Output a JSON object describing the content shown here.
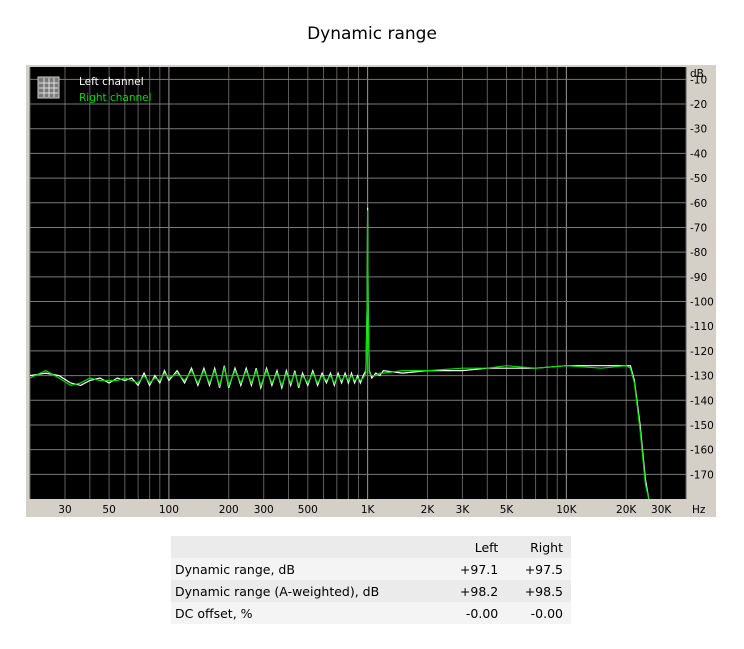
{
  "chart_data": {
    "type": "line",
    "title": "Dynamic range",
    "xlabel": "Hz",
    "ylabel": "dB",
    "x_scale": "log",
    "xlim": [
      20,
      40000
    ],
    "ylim": [
      -180,
      -5
    ],
    "grid": true,
    "legend_position": "top-left",
    "x_ticks": [
      {
        "value": 30,
        "label": "30"
      },
      {
        "value": 50,
        "label": "50"
      },
      {
        "value": 100,
        "label": "100"
      },
      {
        "value": 200,
        "label": "200"
      },
      {
        "value": 300,
        "label": "300"
      },
      {
        "value": 500,
        "label": "500"
      },
      {
        "value": 1000,
        "label": "1K"
      },
      {
        "value": 2000,
        "label": "2K"
      },
      {
        "value": 3000,
        "label": "3K"
      },
      {
        "value": 5000,
        "label": "5K"
      },
      {
        "value": 10000,
        "label": "10K"
      },
      {
        "value": 20000,
        "label": "20K"
      },
      {
        "value": 30000,
        "label": "30K"
      }
    ],
    "y_ticks": [
      -10,
      -20,
      -30,
      -40,
      -50,
      -60,
      -70,
      -80,
      -90,
      -100,
      -110,
      -120,
      -130,
      -140,
      -150,
      -160,
      -170
    ],
    "series": [
      {
        "name": "Left channel",
        "color": "#ffffff",
        "points": [
          [
            20,
            -130
          ],
          [
            24,
            -129
          ],
          [
            28,
            -130
          ],
          [
            32,
            -133
          ],
          [
            36,
            -134
          ],
          [
            40,
            -132
          ],
          [
            45,
            -131
          ],
          [
            50,
            -133
          ],
          [
            55,
            -131
          ],
          [
            60,
            -132
          ],
          [
            65,
            -131
          ],
          [
            70,
            -134
          ],
          [
            75,
            -129
          ],
          [
            80,
            -134
          ],
          [
            85,
            -130
          ],
          [
            90,
            -133
          ],
          [
            95,
            -128
          ],
          [
            100,
            -132
          ],
          [
            110,
            -128
          ],
          [
            120,
            -133
          ],
          [
            130,
            -127
          ],
          [
            140,
            -134
          ],
          [
            150,
            -127
          ],
          [
            160,
            -134
          ],
          [
            170,
            -127
          ],
          [
            180,
            -135
          ],
          [
            190,
            -126
          ],
          [
            200,
            -135
          ],
          [
            215,
            -127
          ],
          [
            230,
            -134
          ],
          [
            245,
            -127
          ],
          [
            260,
            -134
          ],
          [
            275,
            -127
          ],
          [
            290,
            -135
          ],
          [
            310,
            -127
          ],
          [
            330,
            -134
          ],
          [
            350,
            -128
          ],
          [
            370,
            -135
          ],
          [
            390,
            -128
          ],
          [
            410,
            -134
          ],
          [
            430,
            -128
          ],
          [
            450,
            -135
          ],
          [
            470,
            -129
          ],
          [
            500,
            -134
          ],
          [
            530,
            -128
          ],
          [
            560,
            -134
          ],
          [
            590,
            -129
          ],
          [
            620,
            -133
          ],
          [
            650,
            -129
          ],
          [
            680,
            -134
          ],
          [
            710,
            -129
          ],
          [
            740,
            -133
          ],
          [
            770,
            -129
          ],
          [
            800,
            -133
          ],
          [
            830,
            -129
          ],
          [
            860,
            -133
          ],
          [
            890,
            -130
          ],
          [
            920,
            -133
          ],
          [
            950,
            -130
          ],
          [
            980,
            -128
          ],
          [
            995,
            -100
          ],
          [
            1000,
            -62
          ],
          [
            1005,
            -100
          ],
          [
            1020,
            -128
          ],
          [
            1050,
            -131
          ],
          [
            1100,
            -129
          ],
          [
            1150,
            -130
          ],
          [
            1200,
            -128
          ],
          [
            1500,
            -129
          ],
          [
            2000,
            -128
          ],
          [
            3000,
            -128
          ],
          [
            4000,
            -127
          ],
          [
            5000,
            -127
          ],
          [
            7000,
            -127
          ],
          [
            10000,
            -126
          ],
          [
            15000,
            -126
          ],
          [
            20000,
            -126
          ],
          [
            21000,
            -126
          ],
          [
            22000,
            -132
          ],
          [
            23500,
            -150
          ],
          [
            25000,
            -172
          ],
          [
            26000,
            -180
          ]
        ]
      },
      {
        "name": "Right channel",
        "color": "#00dd00",
        "points": [
          [
            20,
            -131
          ],
          [
            24,
            -128
          ],
          [
            28,
            -131
          ],
          [
            32,
            -134
          ],
          [
            36,
            -133
          ],
          [
            40,
            -131
          ],
          [
            45,
            -132
          ],
          [
            50,
            -132
          ],
          [
            55,
            -132
          ],
          [
            60,
            -131
          ],
          [
            65,
            -132
          ],
          [
            70,
            -133
          ],
          [
            75,
            -130
          ],
          [
            80,
            -133
          ],
          [
            85,
            -131
          ],
          [
            90,
            -132
          ],
          [
            95,
            -129
          ],
          [
            100,
            -131
          ],
          [
            110,
            -129
          ],
          [
            120,
            -132
          ],
          [
            130,
            -128
          ],
          [
            140,
            -133
          ],
          [
            150,
            -128
          ],
          [
            160,
            -133
          ],
          [
            170,
            -128
          ],
          [
            180,
            -134
          ],
          [
            190,
            -127
          ],
          [
            200,
            -134
          ],
          [
            215,
            -128
          ],
          [
            230,
            -133
          ],
          [
            245,
            -128
          ],
          [
            260,
            -133
          ],
          [
            275,
            -128
          ],
          [
            290,
            -134
          ],
          [
            310,
            -128
          ],
          [
            330,
            -133
          ],
          [
            350,
            -129
          ],
          [
            370,
            -134
          ],
          [
            390,
            -129
          ],
          [
            410,
            -133
          ],
          [
            430,
            -129
          ],
          [
            450,
            -134
          ],
          [
            470,
            -130
          ],
          [
            500,
            -133
          ],
          [
            530,
            -129
          ],
          [
            560,
            -133
          ],
          [
            590,
            -130
          ],
          [
            620,
            -132
          ],
          [
            650,
            -130
          ],
          [
            680,
            -133
          ],
          [
            710,
            -130
          ],
          [
            740,
            -132
          ],
          [
            770,
            -130
          ],
          [
            800,
            -132
          ],
          [
            830,
            -130
          ],
          [
            860,
            -132
          ],
          [
            890,
            -131
          ],
          [
            920,
            -132
          ],
          [
            950,
            -131
          ],
          [
            980,
            -129
          ],
          [
            995,
            -101
          ],
          [
            1000,
            -63
          ],
          [
            1005,
            -101
          ],
          [
            1020,
            -129
          ],
          [
            1050,
            -130
          ],
          [
            1100,
            -130
          ],
          [
            1150,
            -129
          ],
          [
            1200,
            -129
          ],
          [
            1500,
            -128
          ],
          [
            2000,
            -128
          ],
          [
            3000,
            -127
          ],
          [
            4000,
            -127
          ],
          [
            5000,
            -126
          ],
          [
            7000,
            -127
          ],
          [
            10000,
            -126
          ],
          [
            15000,
            -127
          ],
          [
            20000,
            -126
          ],
          [
            21000,
            -127
          ],
          [
            22000,
            -133
          ],
          [
            23500,
            -152
          ],
          [
            25000,
            -174
          ],
          [
            26000,
            -180
          ]
        ]
      }
    ]
  },
  "results_table": {
    "headers": [
      "",
      "Left",
      "Right"
    ],
    "rows": [
      {
        "label": "Dynamic range, dB",
        "left": "+97.1",
        "right": "+97.5"
      },
      {
        "label": "Dynamic range (A-weighted), dB",
        "left": "+98.2",
        "right": "+98.5"
      },
      {
        "label": "DC offset, %",
        "left": "-0.00",
        "right": "-0.00"
      }
    ]
  }
}
